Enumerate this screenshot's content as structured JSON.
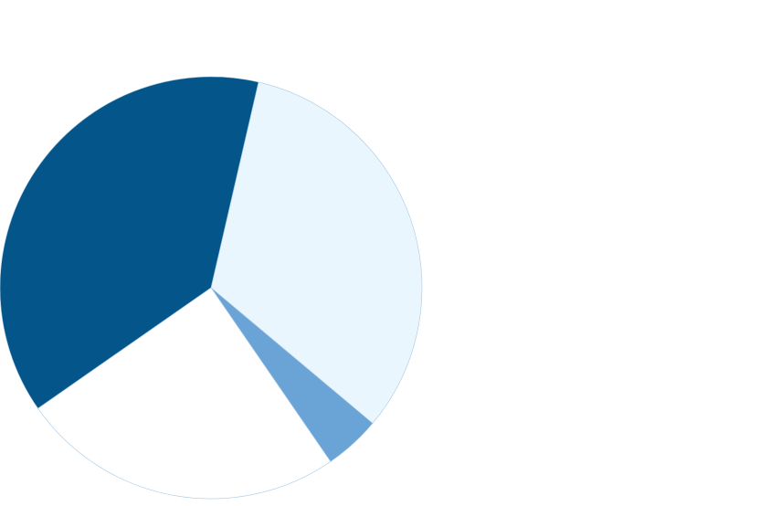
{
  "chart_data": {
    "type": "pie",
    "title": "",
    "start_angle_deg": 13,
    "direction": "clockwise",
    "slices": [
      {
        "value": 32.5,
        "color": "#eaf6fd"
      },
      {
        "value": 4.3,
        "color": "#6aa3d5"
      },
      {
        "value": 24.9,
        "color": "#ffffff"
      },
      {
        "value": 38.3,
        "color": "#04568a"
      }
    ],
    "legend": "none",
    "data_labels": "none"
  },
  "colors": {
    "background": "#ffffff",
    "slice_outline": "#a9c9e4"
  }
}
